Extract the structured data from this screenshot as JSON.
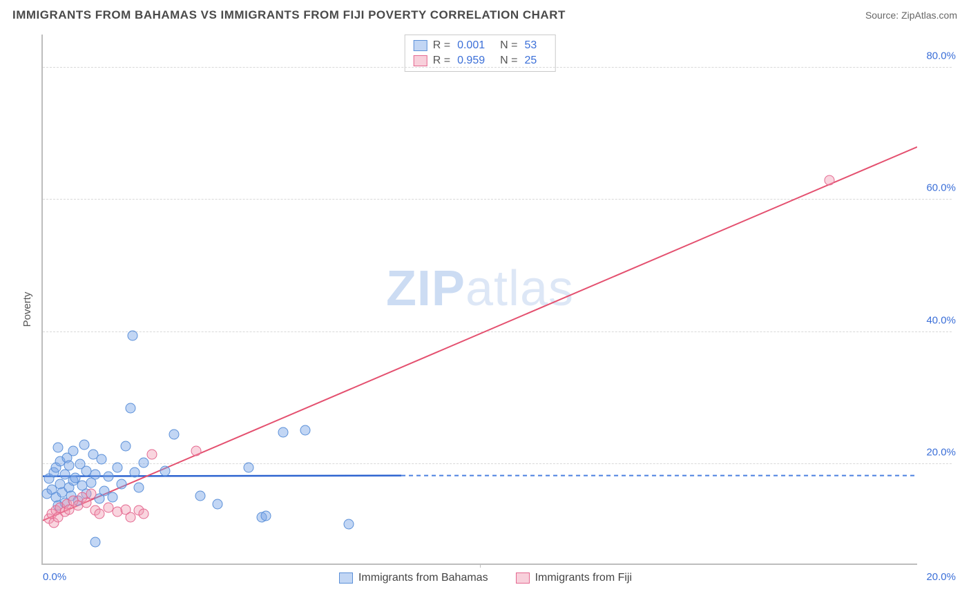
{
  "title": "IMMIGRANTS FROM BAHAMAS VS IMMIGRANTS FROM FIJI POVERTY CORRELATION CHART",
  "source": "Source: ZipAtlas.com",
  "ylabel": "Poverty",
  "watermark_bold": "ZIP",
  "watermark_rest": "atlas",
  "chart": {
    "type": "scatter",
    "xlim": [
      0,
      20
    ],
    "ylim": [
      5,
      85
    ],
    "x_ticks": [
      0,
      10,
      20
    ],
    "x_tick_labels": [
      "0.0%",
      "",
      "20.0%"
    ],
    "y_gridlines": [
      20,
      40,
      60,
      80
    ],
    "y_tick_labels": [
      "20.0%",
      "40.0%",
      "60.0%",
      "80.0%"
    ],
    "background_color": "#ffffff",
    "grid_color": "#d8d8d8",
    "axis_color": "#bdbdbd",
    "tick_label_color": "#3b6fd8",
    "series": [
      {
        "name": "Immigrants from Bahamas",
        "color_fill": "rgba(120,165,230,0.45)",
        "color_stroke": "#5a8fd8",
        "trend_color": "#2d64d0",
        "r": "0.001",
        "n": "53",
        "trend": {
          "x1": 0,
          "y1": 18.2,
          "x2": 8.2,
          "y2": 18.3,
          "dashed_extend_to_x": 20
        },
        "points": [
          [
            0.1,
            15.5
          ],
          [
            0.15,
            17.8
          ],
          [
            0.2,
            16.2
          ],
          [
            0.25,
            18.8
          ],
          [
            0.3,
            15.0
          ],
          [
            0.3,
            19.5
          ],
          [
            0.35,
            13.8
          ],
          [
            0.35,
            22.5
          ],
          [
            0.4,
            17.0
          ],
          [
            0.4,
            20.5
          ],
          [
            0.45,
            15.8
          ],
          [
            0.5,
            18.5
          ],
          [
            0.5,
            14.2
          ],
          [
            0.55,
            21.0
          ],
          [
            0.6,
            16.5
          ],
          [
            0.6,
            19.8
          ],
          [
            0.65,
            15.2
          ],
          [
            0.7,
            17.5
          ],
          [
            0.7,
            22.0
          ],
          [
            0.75,
            18.0
          ],
          [
            0.8,
            14.5
          ],
          [
            0.85,
            20.0
          ],
          [
            0.9,
            16.8
          ],
          [
            0.95,
            23.0
          ],
          [
            1.0,
            15.5
          ],
          [
            1.0,
            19.0
          ],
          [
            1.1,
            17.2
          ],
          [
            1.15,
            21.5
          ],
          [
            1.2,
            18.5
          ],
          [
            1.3,
            14.8
          ],
          [
            1.35,
            20.8
          ],
          [
            1.4,
            16.0
          ],
          [
            1.5,
            18.2
          ],
          [
            1.6,
            15.0
          ],
          [
            1.7,
            19.5
          ],
          [
            1.8,
            17.0
          ],
          [
            1.9,
            22.8
          ],
          [
            2.0,
            28.5
          ],
          [
            2.1,
            18.8
          ],
          [
            2.2,
            16.5
          ],
          [
            2.3,
            20.2
          ],
          [
            2.05,
            39.5
          ],
          [
            2.8,
            19.0
          ],
          [
            3.0,
            24.5
          ],
          [
            3.6,
            15.2
          ],
          [
            4.0,
            14.0
          ],
          [
            4.7,
            19.5
          ],
          [
            5.0,
            12.0
          ],
          [
            5.1,
            12.2
          ],
          [
            5.5,
            24.8
          ],
          [
            6.0,
            25.2
          ],
          [
            7.0,
            11.0
          ],
          [
            1.2,
            8.2
          ]
        ]
      },
      {
        "name": "Immigrants from Fiji",
        "color_fill": "rgba(240,150,175,0.40)",
        "color_stroke": "#e4678f",
        "trend_color": "#e4506f",
        "r": "0.959",
        "n": "25",
        "trend": {
          "x1": 0,
          "y1": 11.5,
          "x2": 20,
          "y2": 68.0
        },
        "points": [
          [
            0.15,
            11.8
          ],
          [
            0.2,
            12.5
          ],
          [
            0.25,
            11.2
          ],
          [
            0.3,
            13.0
          ],
          [
            0.35,
            12.0
          ],
          [
            0.4,
            13.5
          ],
          [
            0.5,
            12.8
          ],
          [
            0.55,
            14.0
          ],
          [
            0.6,
            13.2
          ],
          [
            0.7,
            14.5
          ],
          [
            0.8,
            13.8
          ],
          [
            0.9,
            15.0
          ],
          [
            1.0,
            14.2
          ],
          [
            1.1,
            15.5
          ],
          [
            1.2,
            13.0
          ],
          [
            1.3,
            12.5
          ],
          [
            1.5,
            13.5
          ],
          [
            1.7,
            12.8
          ],
          [
            1.9,
            13.2
          ],
          [
            2.0,
            12.0
          ],
          [
            2.2,
            13.0
          ],
          [
            2.3,
            12.5
          ],
          [
            2.5,
            21.5
          ],
          [
            3.5,
            22.0
          ],
          [
            18.0,
            63.0
          ]
        ]
      }
    ]
  },
  "legend_bottom": [
    {
      "swatch": "blue",
      "label": "Immigrants from Bahamas"
    },
    {
      "swatch": "pink",
      "label": "Immigrants from Fiji"
    }
  ]
}
